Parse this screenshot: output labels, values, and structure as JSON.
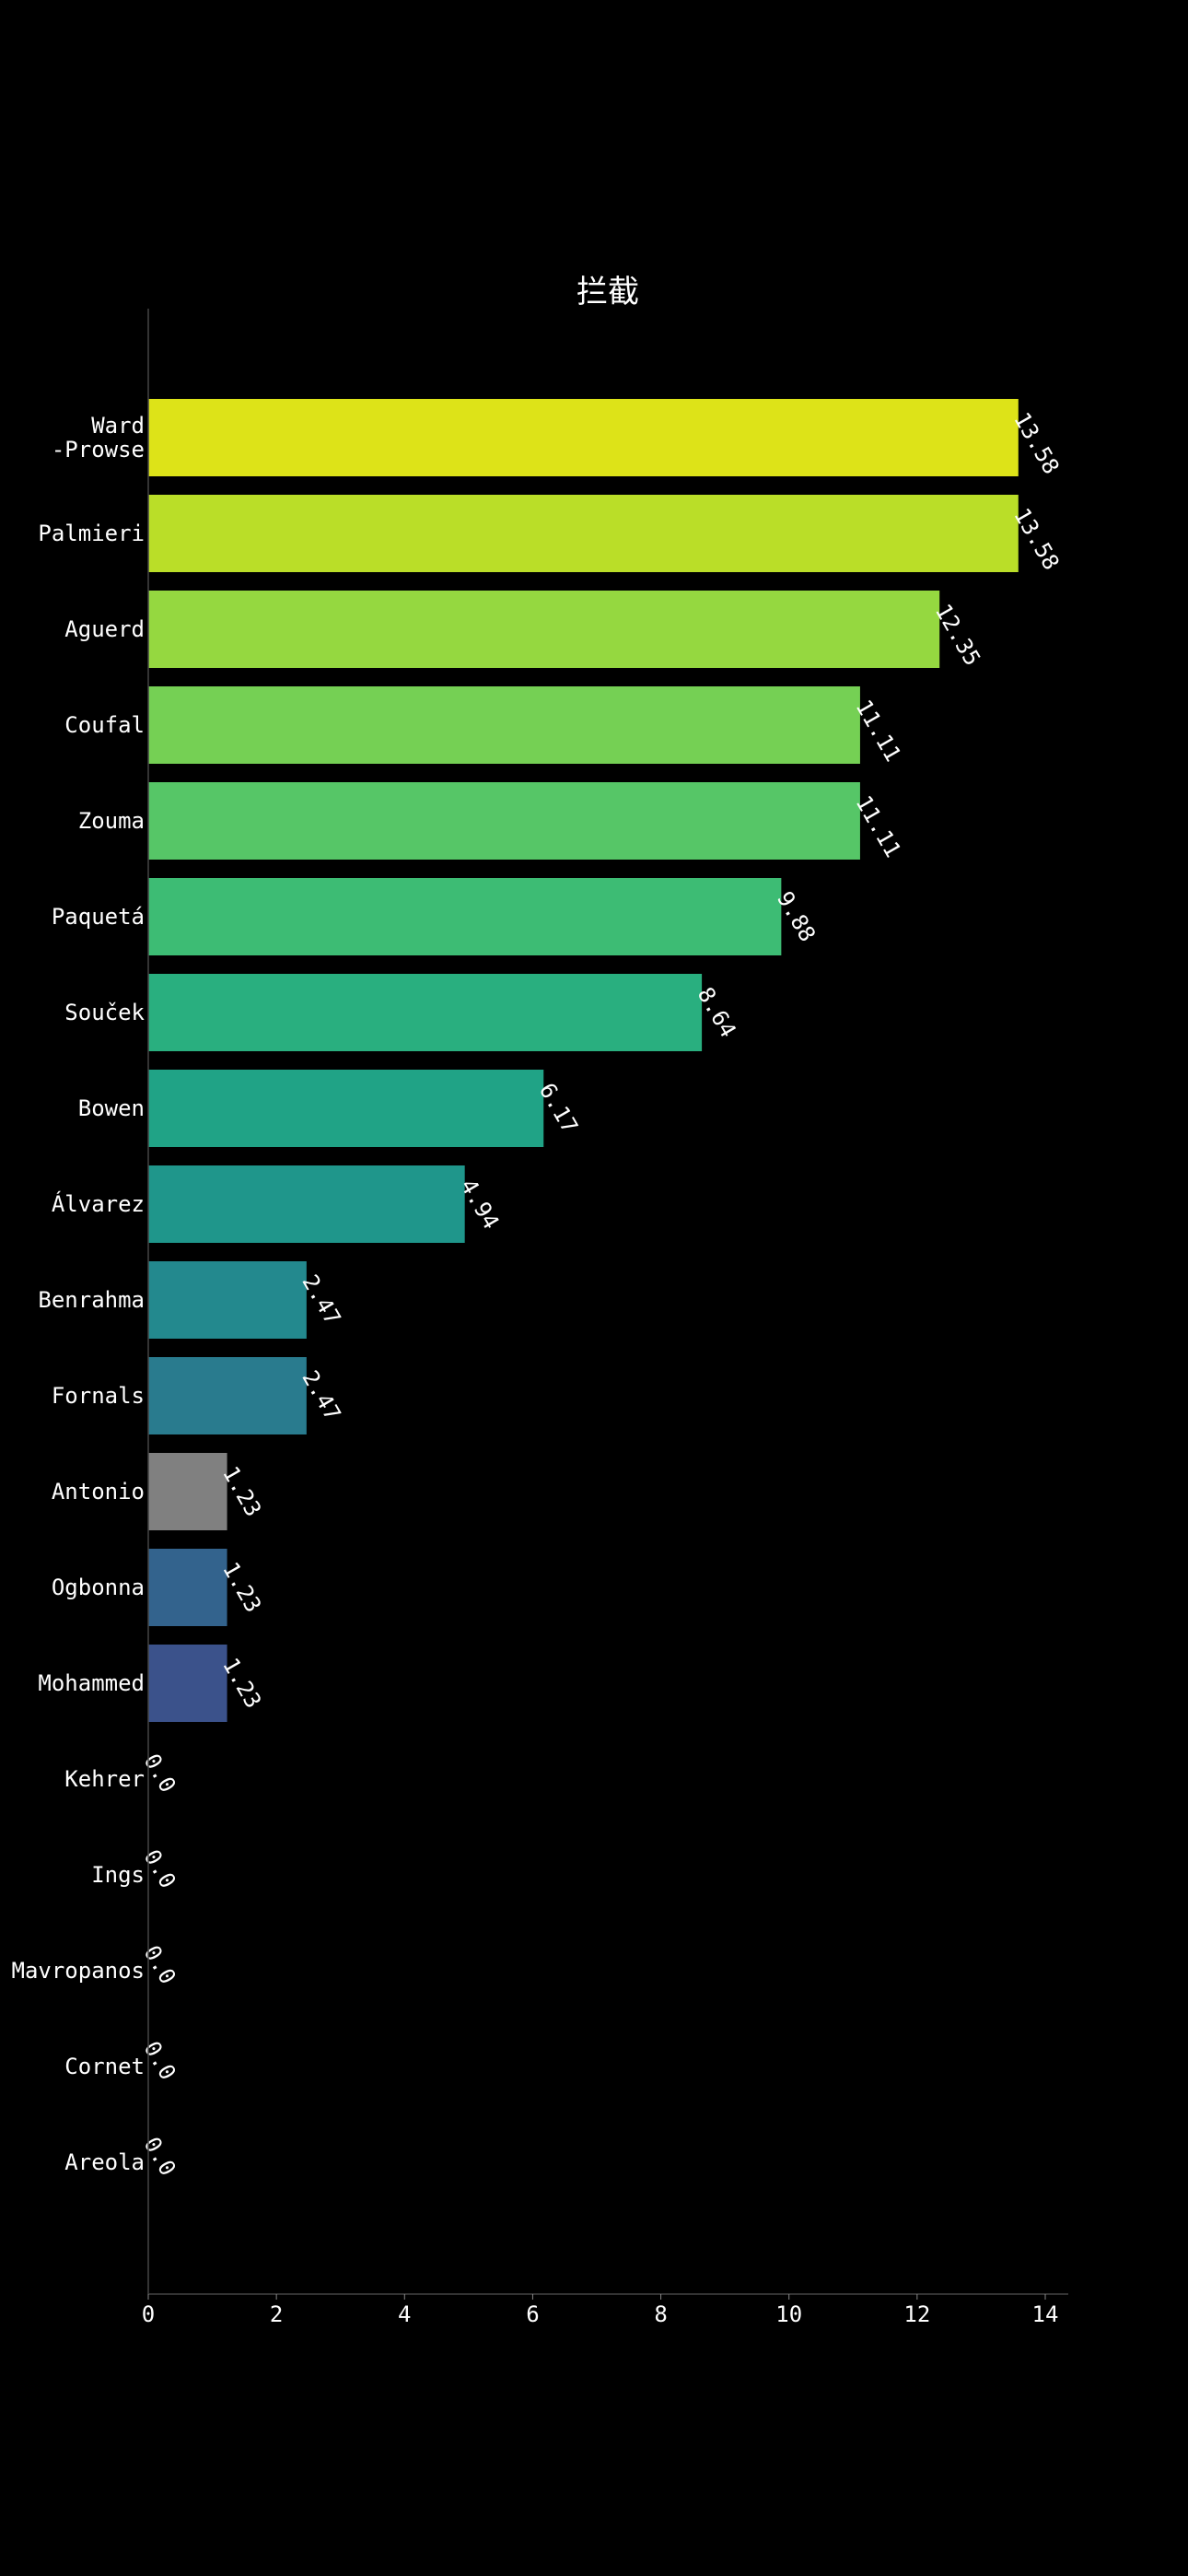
{
  "chart_data": {
    "type": "bar",
    "orientation": "horizontal",
    "title": "拦截",
    "xlabel": "",
    "ylabel": "",
    "xlim": [
      0,
      14
    ],
    "xticks": [
      "0",
      "2",
      "4",
      "6",
      "8",
      "10",
      "12",
      "14"
    ],
    "grid": false,
    "background": "#000000",
    "text_color": "#ffffff",
    "bars": [
      {
        "label": [
          "Ward",
          "-Prowse"
        ],
        "value": 13.58,
        "value_label": "13.58",
        "color": "#dde318"
      },
      {
        "label": [
          "Palmieri"
        ],
        "value": 13.58,
        "value_label": "13.58",
        "color": "#bade28"
      },
      {
        "label": [
          "Aguerd"
        ],
        "value": 12.35,
        "value_label": "12.35",
        "color": "#95d840"
      },
      {
        "label": [
          "Coufal"
        ],
        "value": 11.11,
        "value_label": "11.11",
        "color": "#75d054"
      },
      {
        "label": [
          "Zouma"
        ],
        "value": 11.11,
        "value_label": "11.11",
        "color": "#56c667"
      },
      {
        "label": [
          "Paquetá"
        ],
        "value": 9.88,
        "value_label": "9.88",
        "color": "#3dbc74"
      },
      {
        "label": [
          "Souček"
        ],
        "value": 8.64,
        "value_label": "8.64",
        "color": "#29af7f"
      },
      {
        "label": [
          "Bowen"
        ],
        "value": 6.17,
        "value_label": "6.17",
        "color": "#20a386"
      },
      {
        "label": [
          "Álvarez"
        ],
        "value": 4.94,
        "value_label": "4.94",
        "color": "#1f968b"
      },
      {
        "label": [
          "Benrahma"
        ],
        "value": 2.47,
        "value_label": "2.47",
        "color": "#23898e"
      },
      {
        "label": [
          "Fornals"
        ],
        "value": 2.47,
        "value_label": "2.47",
        "color": "#297b8e"
      },
      {
        "label": [
          "Antonio"
        ],
        "value": 1.23,
        "value_label": "1.23",
        "color": "#808080"
      },
      {
        "label": [
          "Ogbonna"
        ],
        "value": 1.23,
        "value_label": "1.23",
        "color": "#33638d"
      },
      {
        "label": [
          "Mohammed"
        ],
        "value": 1.23,
        "value_label": "1.23",
        "color": "#3b528b"
      },
      {
        "label": [
          "Kehrer"
        ],
        "value": 0.0,
        "value_label": "0.0",
        "color": "#404387"
      },
      {
        "label": [
          "Ings"
        ],
        "value": 0.0,
        "value_label": "0.0",
        "color": "#453781"
      },
      {
        "label": [
          "Mavropanos"
        ],
        "value": 0.0,
        "value_label": "0.0",
        "color": "#482575"
      },
      {
        "label": [
          "Cornet"
        ],
        "value": 0.0,
        "value_label": "0.0",
        "color": "#481467"
      },
      {
        "label": [
          "Areola"
        ],
        "value": 0.0,
        "value_label": "0.0",
        "color": "#440154"
      }
    ]
  }
}
